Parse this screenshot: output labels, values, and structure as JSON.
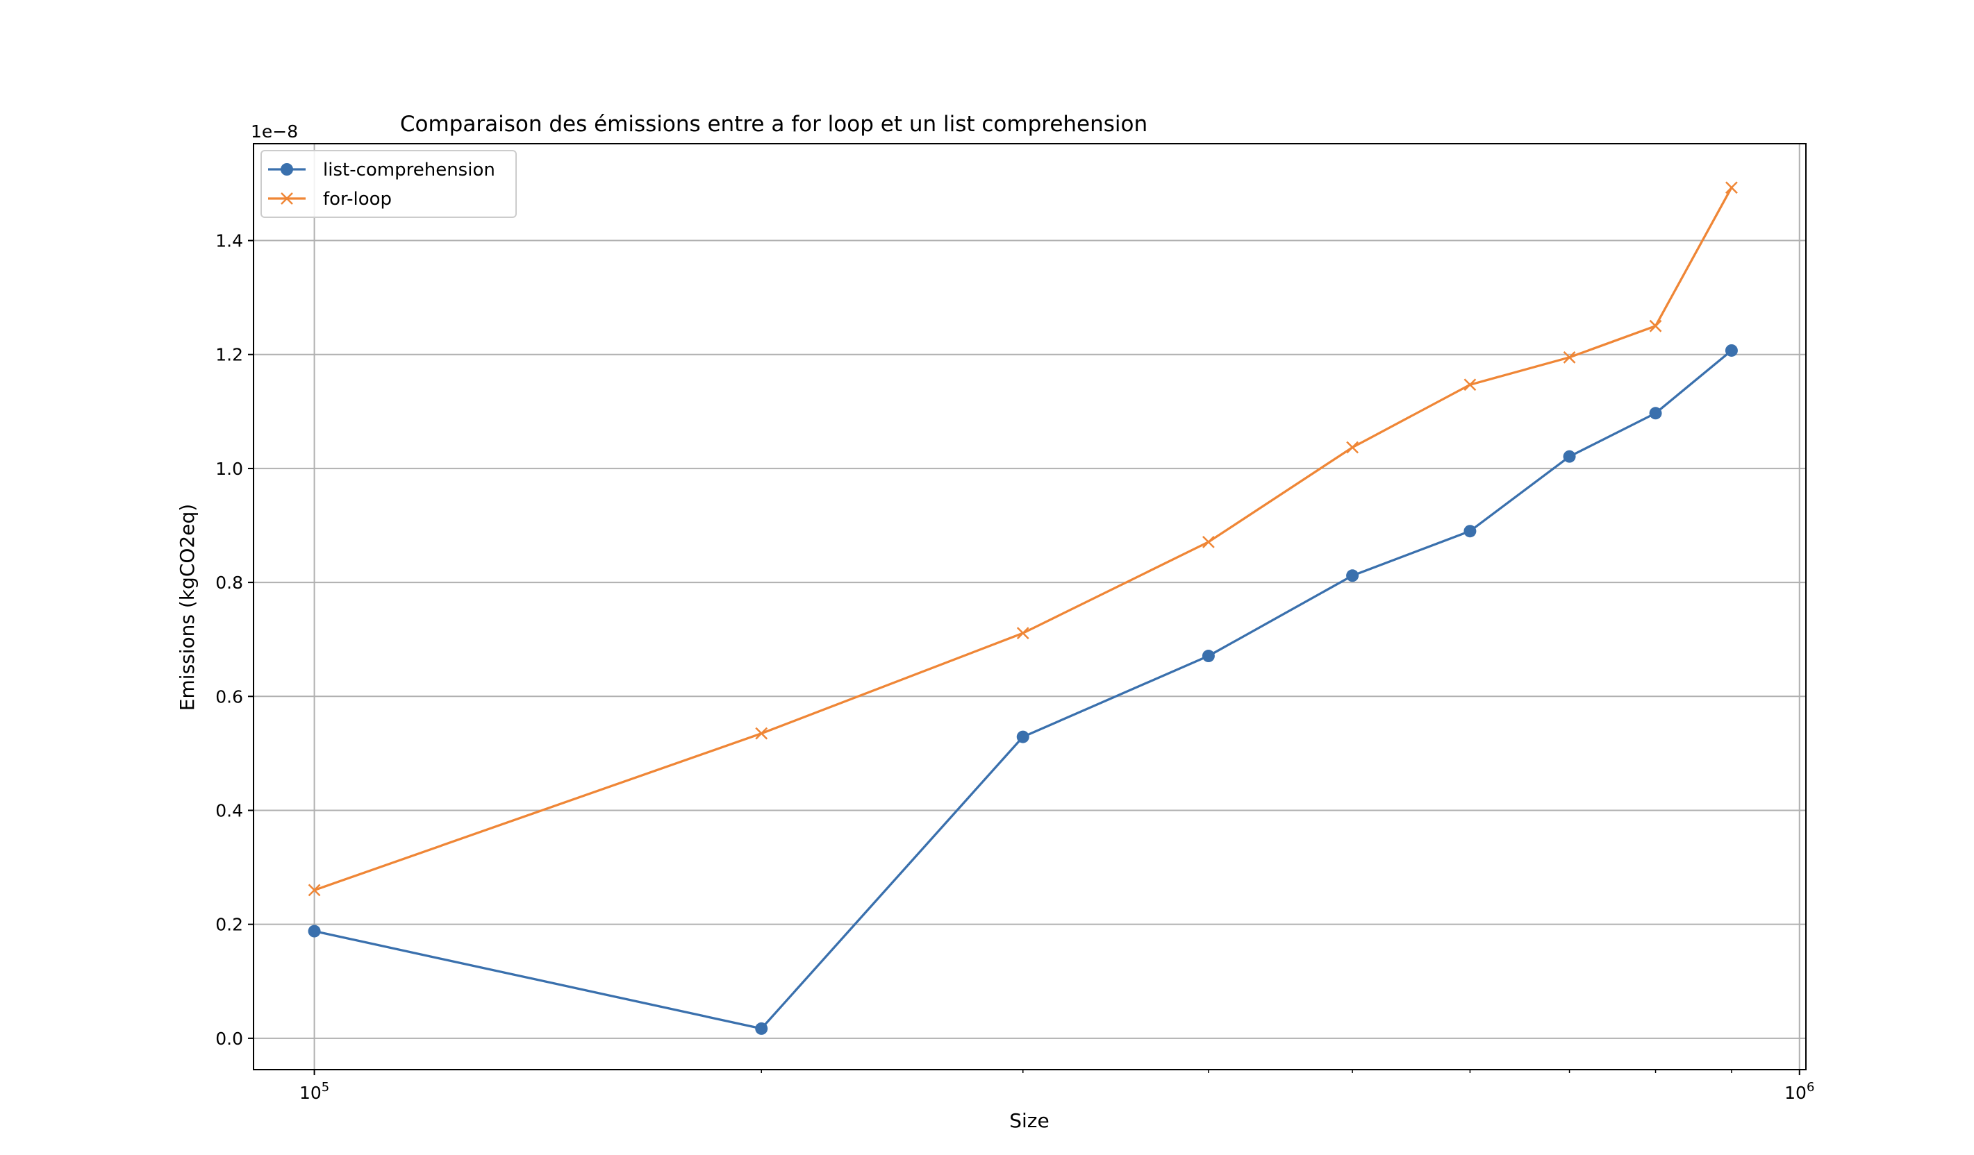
{
  "chart_data": {
    "type": "line",
    "title": "Comparaison des émissions entre a for loop et un list comprehension",
    "xlabel": "Size",
    "ylabel": "Emissions (kgCO2eq)",
    "y_offset_text": "1e−8",
    "x_scale": "log",
    "x_ticks": [
      {
        "value": 100000,
        "base": "10",
        "exp": "5"
      },
      {
        "value": 1000000,
        "base": "10",
        "exp": "6"
      }
    ],
    "y_ticks": [
      "0.0",
      "0.2",
      "0.4",
      "0.6",
      "0.8",
      "1.0",
      "1.2",
      "1.4"
    ],
    "y_tick_values": [
      0.0,
      0.2,
      0.4,
      0.6,
      0.8,
      1.0,
      1.2,
      1.4
    ],
    "xlim": [
      91000,
      1010000
    ],
    "ylim": [
      -0.055,
      1.57
    ],
    "grid": true,
    "legend_position": "top-left",
    "x": [
      100000,
      200000,
      300000,
      400000,
      500000,
      600000,
      700000,
      800000,
      900000
    ],
    "series": [
      {
        "name": "list-comprehension",
        "color": "#3a70ad",
        "marker": "circle",
        "values": [
          0.188,
          0.017,
          0.529,
          0.671,
          0.812,
          0.89,
          1.021,
          1.097,
          1.207
        ]
      },
      {
        "name": "for-loop",
        "color": "#ef8636",
        "marker": "x",
        "values": [
          0.26,
          0.535,
          0.711,
          0.871,
          1.037,
          1.147,
          1.195,
          1.25,
          1.493
        ]
      }
    ]
  }
}
